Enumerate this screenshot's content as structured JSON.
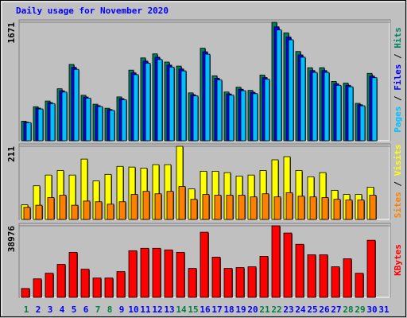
{
  "chart_data": [
    {
      "type": "bar",
      "title": "Daily usage for November 2020",
      "title_color": "#0000ff",
      "ylim": [
        0,
        1671
      ],
      "yticks": [
        1671
      ],
      "legend_separator": " / ",
      "series": [
        {
          "name": "Hits",
          "color": "#00805c",
          "values": [
            275,
            480,
            560,
            733,
            1076,
            641,
            515,
            458,
            618,
            996,
            1168,
            1225,
            1110,
            1053,
            675,
            1305,
            916,
            687,
            755,
            710,
            927,
            1671,
            1522,
            1259,
            1030,
            1030,
            836,
            813,
            527,
            950,
            null
          ]
        },
        {
          "name": "Files",
          "color": "#0000ff",
          "values": [
            262,
            460,
            538,
            705,
            1035,
            616,
            495,
            440,
            594,
            958,
            1123,
            1178,
            1067,
            1012,
            649,
            1255,
            881,
            660,
            726,
            683,
            891,
            1607,
            1463,
            1211,
            990,
            990,
            804,
            782,
            507,
            913,
            null
          ]
        },
        {
          "name": "Pages",
          "color": "#00c0ff",
          "values": [
            255,
            448,
            524,
            686,
            1007,
            600,
            482,
            428,
            578,
            932,
            1093,
            1146,
            1038,
            985,
            632,
            1221,
            857,
            643,
            706,
            664,
            867,
            1563,
            1424,
            1178,
            964,
            964,
            782,
            761,
            493,
            889,
            null
          ]
        }
      ]
    },
    {
      "type": "bar",
      "ylim": [
        0,
        211
      ],
      "yticks": [
        211
      ],
      "legend_separator": " / ",
      "series": [
        {
          "name": "Visits",
          "color": "#ffff00",
          "values": [
            42,
            97,
            128,
            141,
            128,
            174,
            111,
            130,
            153,
            151,
            148,
            158,
            158,
            211,
            88,
            139,
            139,
            135,
            125,
            128,
            141,
            172,
            181,
            141,
            123,
            135,
            84,
            72,
            72,
            93,
            null
          ]
        },
        {
          "name": "Sites",
          "color": "#ff8000",
          "values": [
            35,
            41,
            63,
            70,
            41,
            53,
            51,
            44,
            51,
            72,
            81,
            74,
            81,
            95,
            58,
            72,
            70,
            70,
            70,
            65,
            74,
            65,
            77,
            67,
            65,
            63,
            58,
            56,
            56,
            70,
            null
          ]
        }
      ]
    },
    {
      "type": "bar",
      "ylim": [
        0,
        38976
      ],
      "yticks": [
        38976
      ],
      "weekend_color": "#008040",
      "weekend": [
        0,
        6,
        7,
        13,
        14,
        20,
        21,
        27,
        28
      ],
      "categories": [
        "1",
        "2",
        "3",
        "4",
        "5",
        "6",
        "7",
        "8",
        "9",
        "10",
        "11",
        "12",
        "13",
        "14",
        "15",
        "16",
        "17",
        "18",
        "19",
        "20",
        "21",
        "22",
        "23",
        "24",
        "25",
        "26",
        "27",
        "28",
        "29",
        "30",
        "31"
      ],
      "series": [
        {
          "name": "KBytes",
          "color": "#ff0000",
          "values": [
            4818,
            10073,
            13140,
            17956,
            24526,
            15329,
            10511,
            10511,
            14015,
            25402,
            26715,
            26715,
            25840,
            24526,
            15767,
            35475,
            21898,
            15767,
            16205,
            16642,
            22336,
            38976,
            35037,
            28905,
            23212,
            23212,
            16642,
            21022,
            13140,
            31095,
            null
          ]
        }
      ]
    }
  ]
}
